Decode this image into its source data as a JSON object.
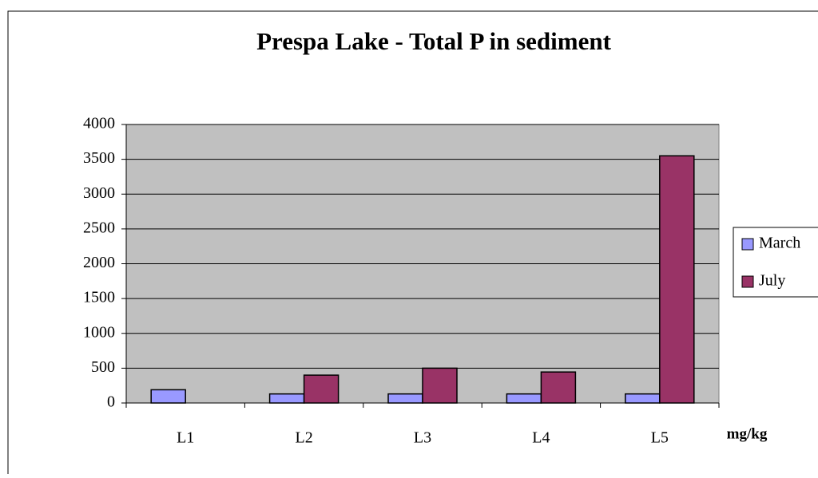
{
  "chart_data": {
    "type": "bar",
    "title": "Prespa Lake - Total P in sediment",
    "x_label": "mg/kg",
    "categories": [
      "L1",
      "L2",
      "L3",
      "L4",
      "L5"
    ],
    "series": [
      {
        "name": "March",
        "color": "#9999ff",
        "values": [
          190,
          130,
          130,
          130,
          130
        ]
      },
      {
        "name": "July",
        "color": "#993366",
        "values": [
          null,
          400,
          500,
          445,
          3550
        ]
      }
    ],
    "ylim": [
      0,
      4000
    ],
    "yticks": [
      0,
      500,
      1000,
      1500,
      2000,
      2500,
      3000,
      3500,
      4000
    ],
    "grid": true,
    "legend": "right"
  }
}
